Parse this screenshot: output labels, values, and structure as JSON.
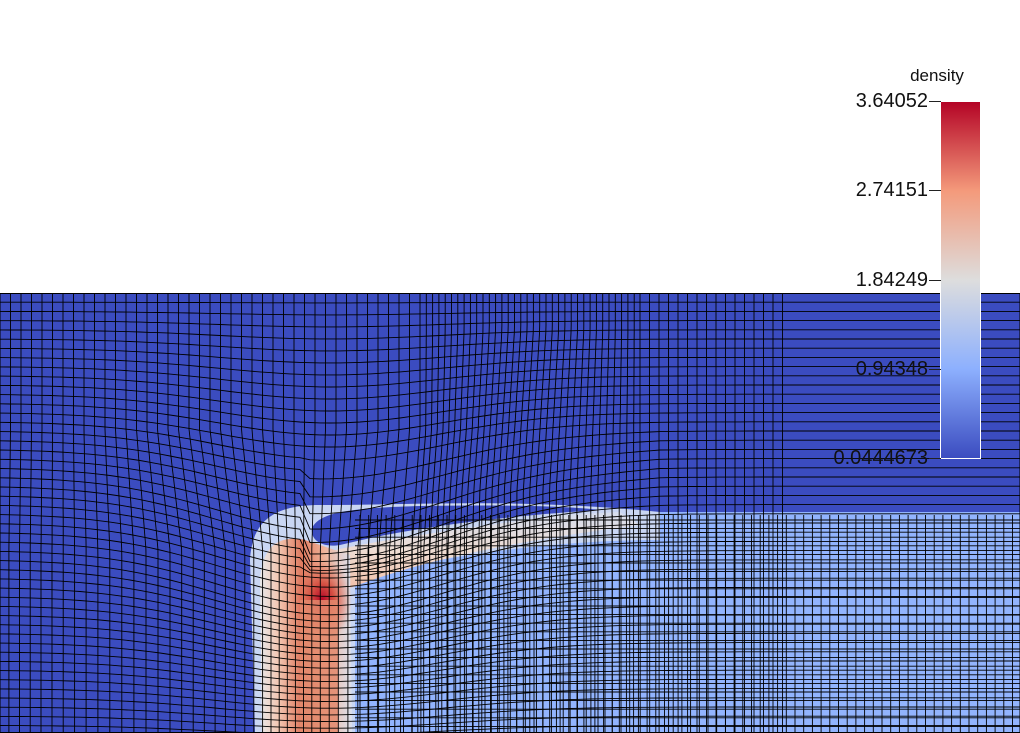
{
  "scalar_bar": {
    "title": "density",
    "labels": [
      "3.64052",
      "2.74151",
      "1.84249",
      "0.94348",
      "0.0444673"
    ],
    "range": [
      0.0444673,
      3.64052
    ],
    "colormap": "Cool to Warm",
    "colors": {
      "low": "#3b4cc0",
      "mid_low": "#8db0fe",
      "mid": "#dddddd",
      "mid_high": "#f49a7b",
      "high": "#b40426"
    }
  },
  "field": {
    "ambient_color": "#3b4cc0",
    "post_shock_color": "#92b4fe",
    "peak_color": "#b40426",
    "mesh_line_color": "#000000"
  }
}
